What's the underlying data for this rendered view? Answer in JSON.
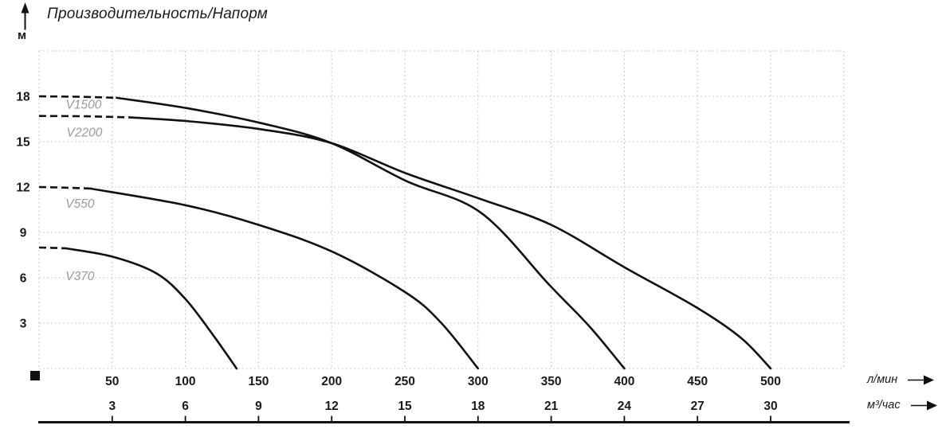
{
  "title": "Производительность/Напорм",
  "y_axis": {
    "unit": "м",
    "ticks": [
      18,
      15,
      12,
      9,
      6,
      3
    ]
  },
  "x_axis": {
    "primary": {
      "unit": "л/мин",
      "ticks": [
        50,
        100,
        150,
        200,
        250,
        300,
        350,
        400,
        450,
        500
      ]
    },
    "secondary": {
      "unit": "м³/час",
      "ticks": [
        3,
        6,
        9,
        12,
        15,
        18,
        21,
        24,
        27,
        30
      ]
    }
  },
  "colors": {
    "curve": "#111111",
    "grid": "#c9c9c9",
    "text": "#1a1a1a",
    "curve_label": "#9a9a9a",
    "axis": "#111111"
  },
  "chart_data": {
    "type": "line",
    "title": "Производительность/Напорм",
    "ylabel": "м",
    "xlabel_primary": "л/мин",
    "xlabel_secondary": "м³/час",
    "xlim": [
      0,
      550
    ],
    "ylim": [
      0,
      21
    ],
    "grid": true,
    "x_tick_step_l_min": 50,
    "x_tick_step_m3_h": 3,
    "y_tick_step_m": 3,
    "series": [
      {
        "name": "V370",
        "max_head_m": 8,
        "max_flow_l_min": 135,
        "dashed_points": [
          [
            0,
            8
          ],
          [
            9,
            7.98
          ],
          [
            18,
            7.95
          ]
        ],
        "solid_points": [
          [
            18,
            7.95
          ],
          [
            50,
            7.4
          ],
          [
            80,
            6.3
          ],
          [
            100,
            4.6
          ],
          [
            119,
            2.2
          ],
          [
            135,
            0
          ]
        ],
        "label_pos": [
          28,
          6.1
        ]
      },
      {
        "name": "V550",
        "max_head_m": 12,
        "max_flow_l_min": 300,
        "dashed_points": [
          [
            0,
            12
          ],
          [
            18,
            11.96
          ],
          [
            35,
            11.9
          ]
        ],
        "solid_points": [
          [
            35,
            11.9
          ],
          [
            100,
            10.8
          ],
          [
            150,
            9.5
          ],
          [
            201,
            7.7
          ],
          [
            251,
            5.0
          ],
          [
            275,
            3.0
          ],
          [
            300,
            0
          ]
        ],
        "label_pos": [
          28,
          10.9
        ]
      },
      {
        "name": "V1500",
        "max_head_m": 18,
        "max_flow_l_min": 400,
        "dashed_points": [
          [
            0,
            18
          ],
          [
            27,
            17.97
          ],
          [
            53,
            17.9
          ]
        ],
        "solid_points": [
          [
            53,
            17.9
          ],
          [
            102,
            17.2
          ],
          [
            153,
            16.2
          ],
          [
            200,
            14.9
          ],
          [
            251,
            12.4
          ],
          [
            302,
            10.3
          ],
          [
            349,
            5.5
          ],
          [
            376,
            2.8
          ],
          [
            400,
            0
          ]
        ],
        "label_pos": [
          30.5,
          17.45
        ]
      },
      {
        "name": "V2200",
        "max_head_m": 16.7,
        "max_flow_l_min": 500,
        "dashed_points": [
          [
            0,
            16.7
          ],
          [
            32,
            16.68
          ],
          [
            63,
            16.6
          ]
        ],
        "solid_points": [
          [
            63,
            16.6
          ],
          [
            102,
            16.35
          ],
          [
            153,
            15.8
          ],
          [
            200,
            14.9
          ],
          [
            251,
            12.9
          ],
          [
            302,
            11.2
          ],
          [
            350,
            9.5
          ],
          [
            400,
            6.7
          ],
          [
            450,
            4.0
          ],
          [
            480,
            2.0
          ],
          [
            500,
            0
          ]
        ],
        "label_pos": [
          31,
          15.6
        ]
      }
    ]
  }
}
